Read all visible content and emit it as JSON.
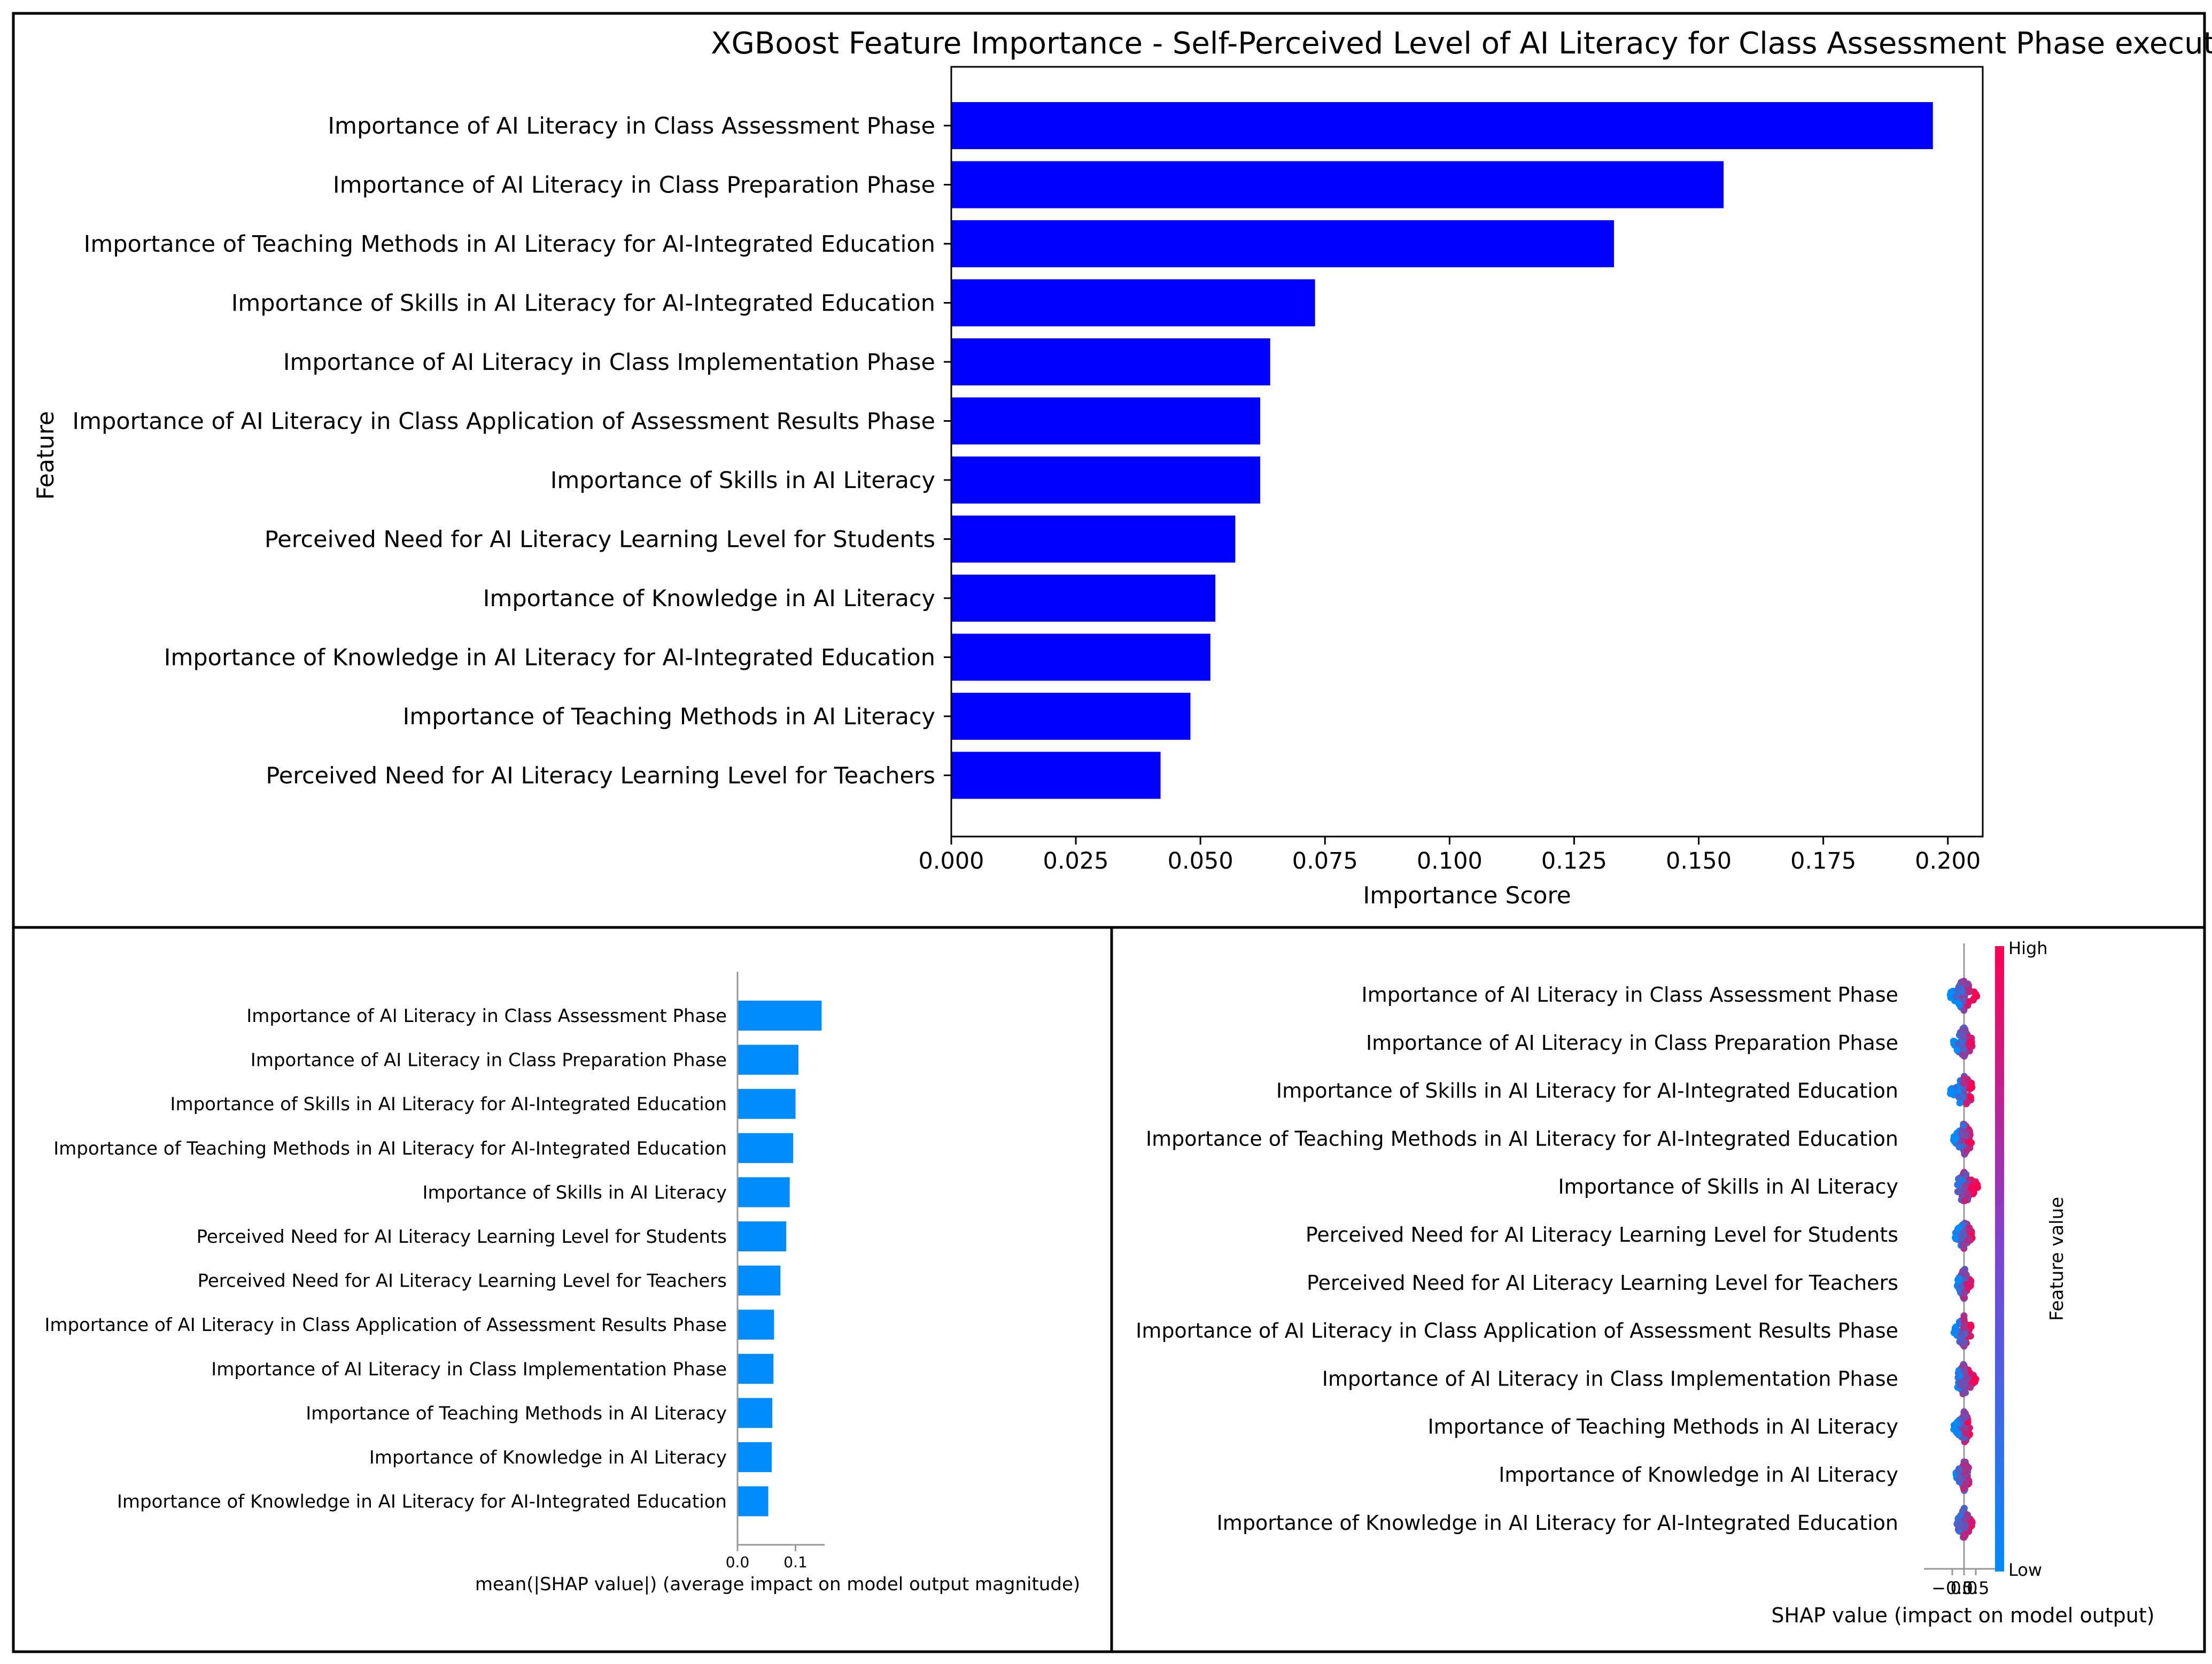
{
  "chart_data": [
    {
      "type": "bar",
      "orientation": "horizontal",
      "title": "XGBoost Feature Importance - Self-Perceived Level of AI Literacy for Class Assessment Phase execution",
      "xlabel": "Importance Score",
      "ylabel": "Feature",
      "xlim": [
        0,
        0.207
      ],
      "xticks": [
        "0.000",
        "0.025",
        "0.050",
        "0.075",
        "0.100",
        "0.125",
        "0.150",
        "0.175",
        "0.200"
      ],
      "xtick_values": [
        0,
        0.025,
        0.05,
        0.075,
        0.1,
        0.125,
        0.15,
        0.175,
        0.2
      ],
      "bar_color": "#0000ff",
      "categories": [
        "Importance of AI Literacy in Class Assessment Phase",
        "Importance of AI Literacy in Class Preparation Phase",
        "Importance of Teaching Methods in AI Literacy for AI-Integrated Education",
        "Importance of Skills in AI Literacy for AI-Integrated Education",
        "Importance of AI Literacy in Class Implementation Phase",
        "Importance of AI Literacy in Class Application of Assessment Results Phase",
        "Importance of Skills in AI Literacy",
        "Perceived Need for AI Literacy Learning Level for Students",
        "Importance of Knowledge in AI Literacy",
        "Importance of Knowledge in AI Literacy for AI-Integrated Education",
        "Importance of Teaching Methods in AI Literacy",
        "Perceived Need for AI Literacy Learning Level for Teachers"
      ],
      "values": [
        0.197,
        0.155,
        0.133,
        0.073,
        0.064,
        0.062,
        0.062,
        0.057,
        0.053,
        0.052,
        0.048,
        0.042
      ]
    },
    {
      "type": "bar",
      "orientation": "horizontal",
      "title": "",
      "xlabel": "mean(|SHAP value|) (average impact on model output magnitude)",
      "xlim": [
        0,
        0.152
      ],
      "xticks": [
        "0.0",
        "0.1"
      ],
      "xtick_values": [
        0,
        0.1
      ],
      "bar_color": "#008bfb",
      "categories": [
        "Importance of AI Literacy in Class Assessment Phase",
        "Importance of AI Literacy in Class Preparation Phase",
        "Importance of Skills in AI Literacy for AI-Integrated Education",
        "Importance of Teaching Methods in AI Literacy for AI-Integrated Education",
        "Importance of Skills in AI Literacy",
        "Perceived Need for AI Literacy Learning Level for Students",
        "Perceived Need for AI Literacy Learning Level for Teachers",
        "Importance of AI Literacy in Class Application of Assessment Results Phase",
        "Importance of AI Literacy in Class Implementation Phase",
        "Importance of Teaching Methods in AI Literacy",
        "Importance of Knowledge in AI Literacy",
        "Importance of Knowledge in AI Literacy for AI-Integrated Education"
      ],
      "values": [
        0.145,
        0.105,
        0.1,
        0.096,
        0.09,
        0.084,
        0.074,
        0.063,
        0.062,
        0.06,
        0.059,
        0.053
      ]
    },
    {
      "type": "scatter",
      "subtype": "beeswarm",
      "title": "",
      "xlabel": "SHAP value (impact on model output)",
      "xlim": [
        -0.85,
        1.15
      ],
      "xticks": [
        "−0.5",
        "0.0",
        "0.5"
      ],
      "xtick_values": [
        -0.5,
        0.0,
        0.5
      ],
      "colorbar_label": "Feature value",
      "colorbar_high": "High",
      "colorbar_low": "Low",
      "color_low": "#008bfb",
      "color_high": "#ff0051",
      "categories": [
        "Importance of AI Literacy in Class Assessment Phase",
        "Importance of AI Literacy in Class Preparation Phase",
        "Importance of Skills in AI Literacy for AI-Integrated Education",
        "Importance of Teaching Methods in AI Literacy for AI-Integrated Education",
        "Importance of Skills in AI Literacy",
        "Perceived Need for AI Literacy Learning Level for Students",
        "Perceived Need for AI Literacy Learning Level for Teachers",
        "Importance of AI Literacy in Class Application of Assessment Results Phase",
        "Importance of AI Literacy in Class Implementation Phase",
        "Importance of Teaching Methods in AI Literacy",
        "Importance of Knowledge in AI Literacy",
        "Importance of Knowledge in AI Literacy for AI-Integrated Education"
      ],
      "shap_range": [
        [
          -0.6,
          0.55
        ],
        [
          -0.45,
          0.35
        ],
        [
          -0.6,
          0.35
        ],
        [
          -0.5,
          0.35
        ],
        [
          -0.3,
          0.65
        ],
        [
          -0.4,
          0.35
        ],
        [
          -0.3,
          0.3
        ],
        [
          -0.45,
          0.3
        ],
        [
          -0.3,
          0.5
        ],
        [
          -0.5,
          0.25
        ],
        [
          -0.35,
          0.3
        ],
        [
          -0.3,
          0.35
        ]
      ]
    }
  ]
}
